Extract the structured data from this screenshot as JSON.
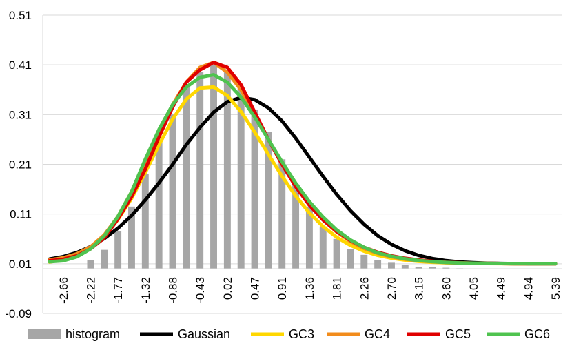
{
  "chart_data": {
    "type": "bar",
    "title": "",
    "xlabel": "",
    "ylabel": "",
    "ylim": [
      -0.09,
      0.51
    ],
    "yticks": [
      "0.51",
      "0.41",
      "0.31",
      "0.21",
      "0.11",
      "0.01",
      "-0.09"
    ],
    "ytick_values": [
      0.51,
      0.41,
      0.31,
      0.21,
      0.11,
      0.01,
      -0.09
    ],
    "x": [
      -2.88,
      -2.66,
      -2.44,
      -2.22,
      -1.99,
      -1.77,
      -1.55,
      -1.32,
      -1.1,
      -0.88,
      -0.66,
      -0.43,
      -0.21,
      0.02,
      0.24,
      0.47,
      0.69,
      0.91,
      1.14,
      1.36,
      1.58,
      1.81,
      2.03,
      2.26,
      2.48,
      2.7,
      2.92,
      3.15,
      3.37,
      3.6,
      3.82,
      4.05,
      4.27,
      4.49,
      4.72,
      4.94,
      5.16,
      5.39
    ],
    "xtick_labels": [
      "-2.66",
      "-2.22",
      "-1.77",
      "-1.32",
      "-0.88",
      "-0.43",
      "0.02",
      "0.47",
      "0.91",
      "1.36",
      "1.81",
      "2.26",
      "2.70",
      "3.15",
      "3.60",
      "4.05",
      "4.49",
      "4.94",
      "5.39"
    ],
    "xtick_indices": [
      1,
      3,
      5,
      7,
      9,
      11,
      13,
      15,
      17,
      19,
      21,
      23,
      25,
      27,
      29,
      31,
      33,
      35,
      37
    ],
    "grid": true,
    "legend_position": "bottom",
    "histogram": {
      "name": "histogram",
      "color": "#a6a6a6",
      "values": [
        0.0,
        0.0,
        0.0,
        0.018,
        0.038,
        0.075,
        0.125,
        0.19,
        0.255,
        0.31,
        0.365,
        0.395,
        0.41,
        0.395,
        0.365,
        0.32,
        0.275,
        0.22,
        0.17,
        0.125,
        0.085,
        0.06,
        0.04,
        0.028,
        0.018,
        0.012,
        0.007,
        0.004,
        0.003,
        0.002,
        0.001,
        0.0,
        0.0,
        0.0,
        0.0,
        0.0,
        0.0,
        0.0
      ]
    },
    "series": [
      {
        "name": "Gaussian",
        "color": "#000000",
        "values": [
          0.0095,
          0.0145,
          0.0227,
          0.0343,
          0.0507,
          0.0714,
          0.097,
          0.1281,
          0.1627,
          0.1997,
          0.2394,
          0.2742,
          0.3047,
          0.3257,
          0.3343,
          0.33,
          0.3135,
          0.287,
          0.2525,
          0.2143,
          0.1757,
          0.1395,
          0.1069,
          0.0792,
          0.0565,
          0.0391,
          0.0261,
          0.0168,
          0.0105,
          0.0063,
          0.0037,
          0.0021,
          0.0011,
          0.0006,
          0.0003,
          0.0001,
          0.0001,
          0.0
        ]
      },
      {
        "name": "GC3",
        "color": "#ffd700",
        "values": [
          0.0035,
          0.0081,
          0.017,
          0.0322,
          0.0542,
          0.0889,
          0.1314,
          0.1834,
          0.2391,
          0.2908,
          0.3309,
          0.3536,
          0.3553,
          0.338,
          0.3058,
          0.2646,
          0.2201,
          0.1762,
          0.1364,
          0.1025,
          0.0748,
          0.0533,
          0.0371,
          0.0253,
          0.017,
          0.0113,
          0.0074,
          0.0048,
          0.0031,
          0.002,
          0.0013,
          0.0008,
          0.0005,
          0.0003,
          0.0002,
          0.0001,
          0.0001,
          0.0
        ]
      },
      {
        "name": "GC4",
        "color": "#f28c1c",
        "values": [
          0.008,
          0.012,
          0.02,
          0.034,
          0.058,
          0.095,
          0.145,
          0.205,
          0.265,
          0.32,
          0.365,
          0.395,
          0.405,
          0.385,
          0.35,
          0.3,
          0.25,
          0.202,
          0.158,
          0.12,
          0.088,
          0.064,
          0.045,
          0.031,
          0.021,
          0.014,
          0.009,
          0.006,
          0.004,
          0.0025,
          0.0015,
          0.001,
          0.0006,
          0.0004,
          0.0002,
          0.0001,
          0.0001,
          0.0
        ]
      },
      {
        "name": "GC5",
        "color": "#e00000",
        "values": [
          0.006,
          0.009,
          0.016,
          0.03,
          0.052,
          0.09,
          0.135,
          0.19,
          0.255,
          0.315,
          0.365,
          0.39,
          0.405,
          0.395,
          0.36,
          0.305,
          0.25,
          0.2,
          0.155,
          0.118,
          0.088,
          0.065,
          0.047,
          0.033,
          0.023,
          0.016,
          0.011,
          0.0075,
          0.005,
          0.003,
          0.002,
          0.0012,
          0.0008,
          0.0005,
          0.0003,
          0.0002,
          0.0001,
          0.0
        ]
      },
      {
        "name": "GC6",
        "color": "#4fc34f",
        "values": [
          0.004,
          0.006,
          0.014,
          0.03,
          0.056,
          0.095,
          0.145,
          0.21,
          0.27,
          0.32,
          0.355,
          0.375,
          0.38,
          0.365,
          0.335,
          0.295,
          0.25,
          0.205,
          0.162,
          0.125,
          0.094,
          0.068,
          0.048,
          0.033,
          0.022,
          0.015,
          0.01,
          0.0065,
          0.0042,
          0.0027,
          0.0017,
          0.0011,
          0.0007,
          0.0004,
          0.0003,
          0.0002,
          0.0001,
          0.0
        ]
      }
    ]
  }
}
